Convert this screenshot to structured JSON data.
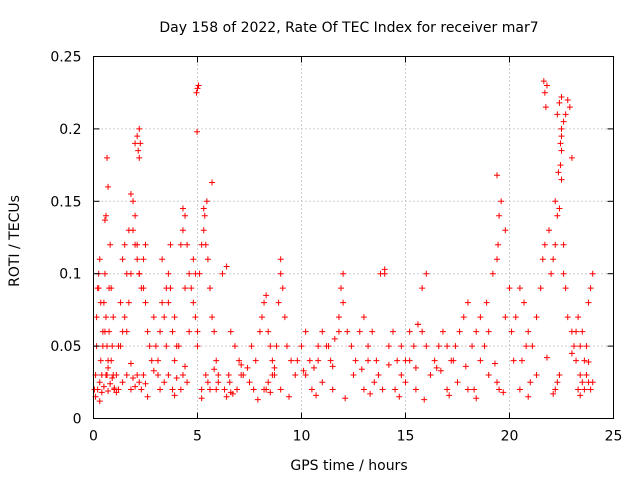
{
  "chart_data": {
    "type": "scatter",
    "title": "Day 158 of 2022, Rate Of TEC Index for receiver mar7",
    "xlabel": "GPS time / hours",
    "ylabel": "ROTI / TECUs",
    "xlim": [
      0,
      25
    ],
    "ylim": [
      0,
      0.25
    ],
    "xticks": [
      0,
      5,
      10,
      15,
      20,
      25
    ],
    "xtick_labels": [
      "0",
      "5",
      "10",
      "15",
      "20",
      "25"
    ],
    "yticks": [
      0,
      0.05,
      0.1,
      0.15,
      0.2,
      0.25
    ],
    "ytick_labels": [
      "0",
      "0.05",
      "0.1",
      "0.15",
      "0.2",
      "0.25"
    ],
    "grid": true,
    "marker": "+",
    "color": "#ff0000",
    "series": [
      {
        "name": "ROTI",
        "x": [
          0.05,
          0.1,
          0.15,
          0.2,
          0.25,
          0.3,
          0.35,
          0.4,
          0.45,
          0.5,
          0.55,
          0.6,
          0.65,
          0.7,
          0.75,
          0.8,
          0.85,
          0.9,
          0.95,
          1.0,
          0.1,
          0.2,
          0.3,
          0.4,
          0.5,
          0.6,
          0.7,
          0.8,
          0.9,
          1.0,
          0.15,
          0.35,
          0.55,
          0.75,
          0.95,
          0.25,
          0.45,
          0.65,
          0.85,
          0.55,
          0.6,
          0.7,
          0.65,
          1.1,
          1.2,
          1.3,
          1.4,
          1.5,
          1.6,
          1.7,
          1.8,
          1.9,
          2.0,
          2.1,
          2.2,
          2.3,
          2.4,
          2.5,
          2.6,
          2.7,
          2.8,
          2.9,
          3.0,
          1.2,
          1.4,
          1.6,
          1.8,
          1.9,
          2.0,
          2.1,
          2.2,
          2.3,
          2.4,
          2.5,
          1.7,
          1.8,
          1.9,
          2.0,
          2.1,
          2.2,
          2.0,
          2.1,
          2.2,
          2.15,
          2.2,
          2.25,
          1.5,
          1.6,
          2.4,
          2.5,
          1.3,
          1.4,
          3.1,
          3.2,
          3.3,
          3.4,
          3.5,
          3.6,
          3.7,
          3.8,
          3.9,
          4.0,
          3.2,
          3.4,
          3.6,
          3.8,
          4.0,
          3.3,
          3.5,
          3.7,
          3.9,
          3.1,
          3.6,
          4.1,
          4.2,
          4.3,
          4.4,
          4.5,
          4.6,
          4.7,
          4.8,
          4.9,
          5.0,
          4.2,
          4.3,
          4.5,
          4.4,
          4.6,
          4.3,
          4.8,
          4.9,
          5.0,
          4.95,
          5.0,
          5.05,
          4.98,
          5.1,
          5.2,
          5.3,
          5.4,
          5.5,
          5.6,
          5.7,
          5.8,
          5.9,
          6.0,
          5.2,
          5.4,
          5.5,
          5.6,
          5.3,
          5.7,
          5.45,
          5.35,
          5.9,
          6.0,
          6.2,
          6.4,
          6.6,
          6.8,
          7.0,
          7.2,
          7.4,
          7.6,
          7.8,
          8.0,
          6.5,
          6.3,
          6.55,
          6.9,
          7.1,
          7.5,
          7.7,
          6.4,
          6.6,
          8.1,
          8.2,
          8.3,
          8.4,
          8.5,
          8.6,
          8.7,
          8.8,
          8.9,
          9.0,
          8.2,
          8.4,
          8.6,
          9.0,
          9.1,
          9.2,
          8.3,
          8.5,
          9.0,
          9.3,
          9.5,
          9.7,
          9.8,
          10.0,
          10.2,
          10.4,
          10.6,
          10.8,
          11.0,
          11.2,
          11.4,
          11.6,
          11.8,
          12.0,
          10.5,
          11.0,
          11.5,
          11.9,
          12.0,
          10.2,
          10.8,
          11.3,
          11.8,
          12.2,
          12.4,
          12.6,
          12.8,
          13.0,
          13.2,
          13.4,
          13.6,
          13.8,
          14.0,
          13.0,
          13.5,
          13.9,
          14.0,
          12.5,
          13.2,
          13.7,
          14.2,
          14.4,
          14.6,
          14.8,
          15.0,
          15.2,
          15.4,
          15.6,
          15.8,
          16.0,
          14.5,
          15.0,
          15.5,
          15.6,
          15.8,
          16.0,
          14.8,
          15.2,
          16.2,
          16.4,
          16.6,
          16.8,
          17.0,
          17.2,
          17.4,
          17.6,
          17.8,
          18.0,
          17.0,
          17.5,
          18.0,
          16.5,
          17.3,
          18.2,
          18.4,
          18.6,
          18.8,
          19.0,
          19.2,
          19.4,
          19.6,
          19.8,
          20.0,
          18.3,
          19.0,
          19.4,
          19.45,
          19.5,
          19.4,
          19.5,
          18.9,
          19.8,
          18.6,
          20.1,
          20.3,
          20.5,
          20.7,
          20.9,
          21.1,
          21.3,
          21.5,
          21.7,
          21.9,
          20.5,
          21.0,
          21.3,
          21.6,
          21.7,
          21.8,
          21.75,
          21.65,
          20.2,
          20.8,
          22.0,
          22.1,
          22.2,
          22.3,
          22.4,
          22.5,
          22.6,
          22.7,
          22.8,
          22.9,
          23.0,
          22.2,
          22.3,
          22.4,
          22.35,
          22.45,
          22.5,
          22.3,
          22.4,
          22.5,
          22.5,
          22.45,
          22.5,
          22.2,
          22.6,
          22.6,
          22.7,
          22.8,
          23.0,
          23.1,
          23.2,
          23.3,
          23.4,
          23.5,
          23.6,
          23.7,
          23.8,
          23.9,
          24.0,
          23.3,
          23.5,
          23.4,
          23.6,
          23.8,
          23.7,
          23.9,
          24.0,
          23.2,
          0.3,
          1.1,
          2.6,
          3.9,
          5.2,
          6.7,
          7.9,
          9.4,
          10.7,
          12.1,
          13.3,
          14.7,
          15.9,
          17.1,
          18.4,
          19.7,
          20.9,
          22.1,
          23.4,
          0.7,
          1.8,
          2.9,
          4.4,
          5.8,
          7.1,
          8.7,
          10.1,
          11.5,
          12.9,
          14.2,
          15.5,
          16.7,
          17.9,
          19.3,
          20.6,
          21.8,
          23.0,
          23.8
        ],
        "y": [
          0.02,
          0.03,
          0.05,
          0.09,
          0.1,
          0.11,
          0.04,
          0.03,
          0.06,
          0.08,
          0.1,
          0.07,
          0.05,
          0.04,
          0.06,
          0.12,
          0.09,
          0.05,
          0.03,
          0.02,
          0.015,
          0.02,
          0.025,
          0.018,
          0.022,
          0.03,
          0.019,
          0.024,
          0.028,
          0.021,
          0.07,
          0.08,
          0.06,
          0.09,
          0.07,
          0.09,
          0.05,
          0.03,
          0.04,
          0.137,
          0.14,
          0.16,
          0.18,
          0.03,
          0.05,
          0.08,
          0.11,
          0.12,
          0.1,
          0.13,
          0.155,
          0.15,
          0.14,
          0.12,
          0.1,
          0.09,
          0.11,
          0.08,
          0.06,
          0.05,
          0.04,
          0.07,
          0.05,
          0.02,
          0.025,
          0.03,
          0.02,
          0.028,
          0.022,
          0.03,
          0.025,
          0.02,
          0.03,
          0.024,
          0.08,
          0.1,
          0.13,
          0.12,
          0.11,
          0.1,
          0.19,
          0.195,
          0.2,
          0.185,
          0.18,
          0.19,
          0.07,
          0.06,
          0.09,
          0.12,
          0.05,
          0.06,
          0.04,
          0.06,
          0.08,
          0.07,
          0.05,
          0.1,
          0.09,
          0.06,
          0.04,
          0.05,
          0.02,
          0.025,
          0.03,
          0.02,
          0.028,
          0.11,
          0.09,
          0.12,
          0.07,
          0.03,
          0.08,
          0.05,
          0.12,
          0.145,
          0.14,
          0.12,
          0.1,
          0.09,
          0.08,
          0.07,
          0.05,
          0.02,
          0.03,
          0.025,
          0.09,
          0.06,
          0.13,
          0.11,
          0.1,
          0.06,
          0.225,
          0.228,
          0.23,
          0.198,
          0.1,
          0.12,
          0.13,
          0.12,
          0.11,
          0.09,
          0.07,
          0.06,
          0.04,
          0.03,
          0.02,
          0.03,
          0.025,
          0.02,
          0.145,
          0.163,
          0.15,
          0.14,
          0.02,
          0.025,
          0.1,
          0.105,
          0.06,
          0.05,
          0.04,
          0.03,
          0.035,
          0.05,
          0.04,
          0.06,
          0.03,
          0.02,
          0.025,
          0.02,
          0.03,
          0.025,
          0.02,
          0.015,
          0.018,
          0.07,
          0.08,
          0.085,
          0.06,
          0.05,
          0.04,
          0.03,
          0.05,
          0.08,
          0.1,
          0.02,
          0.025,
          0.03,
          0.11,
          0.09,
          0.07,
          0.02,
          0.018,
          0.02,
          0.05,
          0.04,
          0.03,
          0.04,
          0.05,
          0.06,
          0.04,
          0.035,
          0.05,
          0.06,
          0.05,
          0.04,
          0.055,
          0.06,
          0.1,
          0.02,
          0.025,
          0.02,
          0.09,
          0.08,
          0.03,
          0.04,
          0.05,
          0.07,
          0.06,
          0.05,
          0.04,
          0.06,
          0.07,
          0.05,
          0.06,
          0.04,
          0.1,
          0.103,
          0.02,
          0.025,
          0.02,
          0.1,
          0.03,
          0.04,
          0.03,
          0.05,
          0.06,
          0.04,
          0.05,
          0.04,
          0.06,
          0.05,
          0.065,
          0.06,
          0.05,
          0.02,
          0.025,
          0.02,
          0.065,
          0.09,
          0.1,
          0.03,
          0.04,
          0.03,
          0.04,
          0.05,
          0.06,
          0.05,
          0.04,
          0.05,
          0.06,
          0.07,
          0.08,
          0.02,
          0.025,
          0.02,
          0.035,
          0.04,
          0.05,
          0.06,
          0.07,
          0.05,
          0.06,
          0.1,
          0.168,
          0.15,
          0.13,
          0.09,
          0.02,
          0.03,
          0.11,
          0.12,
          0.14,
          0.025,
          0.02,
          0.08,
          0.07,
          0.04,
          0.06,
          0.07,
          0.09,
          0.08,
          0.06,
          0.05,
          0.07,
          0.09,
          0.12,
          0.13,
          0.02,
          0.025,
          0.03,
          0.11,
          0.225,
          0.23,
          0.215,
          0.233,
          0.04,
          0.05,
          0.1,
          0.11,
          0.12,
          0.14,
          0.145,
          0.195,
          0.205,
          0.21,
          0.22,
          0.215,
          0.18,
          0.02,
          0.025,
          0.03,
          0.17,
          0.175,
          0.185,
          0.21,
          0.218,
          0.222,
          0.2,
          0.19,
          0.165,
          0.15,
          0.12,
          0.1,
          0.09,
          0.07,
          0.06,
          0.05,
          0.06,
          0.07,
          0.05,
          0.06,
          0.04,
          0.05,
          0.08,
          0.09,
          0.1,
          0.02,
          0.025,
          0.03,
          0.02,
          0.025,
          0.03,
          0.02,
          0.025,
          0.04,
          0.012,
          0.018,
          0.015,
          0.016,
          0.014,
          0.017,
          0.013,
          0.015,
          0.016,
          0.014,
          0.017,
          0.015,
          0.013,
          0.016,
          0.014,
          0.018,
          0.015,
          0.017,
          0.016,
          0.035,
          0.038,
          0.033,
          0.036,
          0.034,
          0.037,
          0.035,
          0.033,
          0.036,
          0.034,
          0.037,
          0.035,
          0.033,
          0.036,
          0.038,
          0.04,
          0.042,
          0.045,
          0.039
        ]
      }
    ]
  }
}
